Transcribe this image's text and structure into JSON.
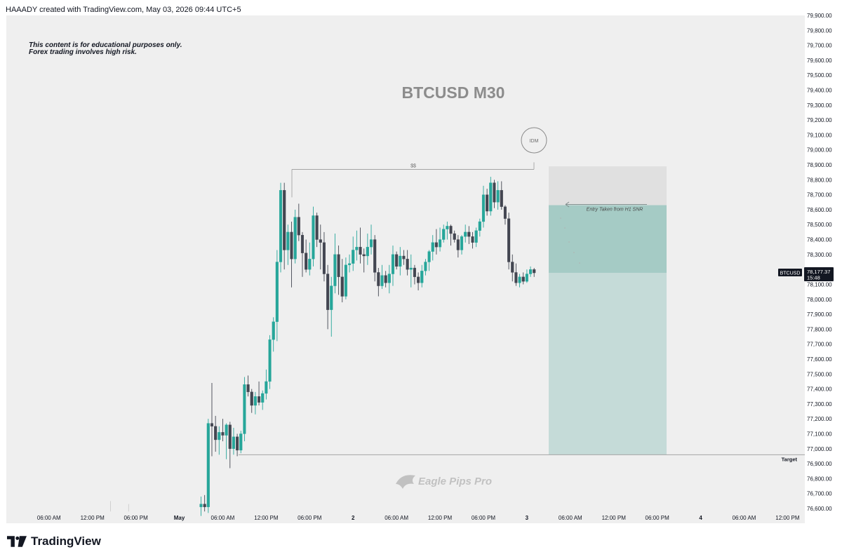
{
  "header": {
    "attribution": "HAAADY created with TradingView.com, May 03, 2026 09:44 UTC+5"
  },
  "footer": {
    "brand": "TradingView"
  },
  "colors": {
    "bullish": "#26a69a",
    "bearish": "#434651",
    "background": "#efefef",
    "tp_zone": "#9bc8c2",
    "sl_zone": "#e0e0e0"
  },
  "chart_data": {
    "type": "candlestick",
    "title": "BTCUSD M30",
    "disclaimer": [
      "This content is for educational purposes only.",
      "Forex trading involves high risk."
    ],
    "watermark": "Eagle Pips Pro",
    "symbol": "BTCUSD",
    "last_price": "78,177.37",
    "countdown": "15:48",
    "ylim": [
      76550,
      79950
    ],
    "y_ticks": [
      76600,
      76700,
      76800,
      76900,
      77000,
      77100,
      77200,
      77300,
      77400,
      77500,
      77600,
      77700,
      77800,
      77900,
      78000,
      78100,
      78200,
      78300,
      78400,
      78500,
      78600,
      78700,
      78800,
      78900,
      79000,
      79100,
      79200,
      79300,
      79400,
      79500,
      79600,
      79700,
      79800,
      79900
    ],
    "x_ticks": [
      {
        "label": "06:00 AM",
        "bar": -42,
        "bold": false
      },
      {
        "label": "12:00 PM",
        "bar": -30,
        "bold": false
      },
      {
        "label": "06:00 PM",
        "bar": -18,
        "bold": false
      },
      {
        "label": "May",
        "bar": -6,
        "bold": true
      },
      {
        "label": "06:00 AM",
        "bar": 6,
        "bold": false
      },
      {
        "label": "12:00 PM",
        "bar": 18,
        "bold": false
      },
      {
        "label": "06:00 PM",
        "bar": 30,
        "bold": false
      },
      {
        "label": "2",
        "bar": 42,
        "bold": true
      },
      {
        "label": "06:00 AM",
        "bar": 54,
        "bold": false
      },
      {
        "label": "12:00 PM",
        "bar": 66,
        "bold": false
      },
      {
        "label": "06:00 PM",
        "bar": 78,
        "bold": false
      },
      {
        "label": "3",
        "bar": 90,
        "bold": true
      },
      {
        "label": "06:00 AM",
        "bar": 102,
        "bold": false
      },
      {
        "label": "12:00 PM",
        "bar": 114,
        "bold": false
      },
      {
        "label": "06:00 PM",
        "bar": 126,
        "bold": false
      },
      {
        "label": "4",
        "bar": 138,
        "bold": true
      },
      {
        "label": "06:00 AM",
        "bar": 150,
        "bold": false
      },
      {
        "label": "12:00 PM",
        "bar": 162,
        "bold": false
      }
    ],
    "candles": [
      [
        76610,
        76680,
        76550,
        76630
      ],
      [
        76630,
        76690,
        76580,
        76610
      ],
      [
        76610,
        77200,
        76570,
        77170
      ],
      [
        77170,
        77440,
        76950,
        77150
      ],
      [
        77150,
        77220,
        76980,
        77060
      ],
      [
        77060,
        77150,
        76960,
        77110
      ],
      [
        77110,
        77200,
        77050,
        77090
      ],
      [
        77090,
        77170,
        76930,
        77160
      ],
      [
        77160,
        77180,
        76870,
        77000
      ],
      [
        77000,
        77140,
        76960,
        77080
      ],
      [
        77080,
        77100,
        76950,
        76990
      ],
      [
        76990,
        77120,
        76970,
        77100
      ],
      [
        77100,
        77480,
        77050,
        77430
      ],
      [
        77430,
        77490,
        77350,
        77380
      ],
      [
        77380,
        77400,
        77240,
        77290
      ],
      [
        77290,
        77380,
        77230,
        77350
      ],
      [
        77350,
        77450,
        77290,
        77310
      ],
      [
        77310,
        77390,
        77260,
        77370
      ],
      [
        77370,
        77530,
        77330,
        77450
      ],
      [
        77450,
        77760,
        77400,
        77730
      ],
      [
        77730,
        77880,
        77650,
        77850
      ],
      [
        77850,
        78330,
        77720,
        78250
      ],
      [
        78250,
        78780,
        78180,
        78730
      ],
      [
        78730,
        78780,
        78200,
        78330
      ],
      [
        78330,
        78500,
        78230,
        78450
      ],
      [
        78450,
        78520,
        78080,
        78270
      ],
      [
        78270,
        78600,
        78240,
        78550
      ],
      [
        78550,
        78640,
        78390,
        78430
      ],
      [
        78430,
        78450,
        78150,
        78310
      ],
      [
        78310,
        78400,
        78180,
        78200
      ],
      [
        78200,
        78380,
        78160,
        78270
      ],
      [
        78270,
        78620,
        78220,
        78560
      ],
      [
        78560,
        78580,
        78350,
        78400
      ],
      [
        78400,
        78500,
        78200,
        78380
      ],
      [
        78380,
        78450,
        78120,
        78170
      ],
      [
        78170,
        78230,
        77800,
        77930
      ],
      [
        77930,
        78150,
        77750,
        78090
      ],
      [
        78090,
        78440,
        78040,
        78300
      ],
      [
        78300,
        78360,
        78030,
        78150
      ],
      [
        78150,
        78270,
        77980,
        78020
      ],
      [
        78020,
        78280,
        78000,
        78230
      ],
      [
        78230,
        78300,
        78180,
        78240
      ],
      [
        78240,
        78420,
        78190,
        78330
      ],
      [
        78330,
        78460,
        78260,
        78350
      ],
      [
        78350,
        78480,
        78240,
        78300
      ],
      [
        78300,
        78340,
        78180,
        78290
      ],
      [
        78290,
        78440,
        78230,
        78350
      ],
      [
        78350,
        78500,
        78300,
        78400
      ],
      [
        78400,
        78430,
        78120,
        78180
      ],
      [
        78180,
        78210,
        78020,
        78090
      ],
      [
        78090,
        78230,
        78070,
        78160
      ],
      [
        78160,
        78190,
        78080,
        78110
      ],
      [
        78110,
        78230,
        78040,
        78170
      ],
      [
        78170,
        78360,
        78090,
        78300
      ],
      [
        78300,
        78320,
        78200,
        78220
      ],
      [
        78220,
        78350,
        78160,
        78290
      ],
      [
        78290,
        78330,
        78230,
        78270
      ],
      [
        78270,
        78330,
        78160,
        78200
      ],
      [
        78200,
        78300,
        78080,
        78210
      ],
      [
        78210,
        78230,
        78100,
        78150
      ],
      [
        78150,
        78180,
        78060,
        78110
      ],
      [
        78110,
        78230,
        78080,
        78190
      ],
      [
        78190,
        78270,
        78160,
        78250
      ],
      [
        78250,
        78330,
        78190,
        78320
      ],
      [
        78320,
        78430,
        78260,
        78380
      ],
      [
        78380,
        78470,
        78300,
        78350
      ],
      [
        78350,
        78480,
        78320,
        78400
      ],
      [
        78400,
        78500,
        78380,
        78470
      ],
      [
        78470,
        78520,
        78400,
        78490
      ],
      [
        78490,
        78500,
        78360,
        78440
      ],
      [
        78440,
        78460,
        78380,
        78400
      ],
      [
        78400,
        78430,
        78280,
        78330
      ],
      [
        78330,
        78430,
        78300,
        78420
      ],
      [
        78420,
        78500,
        78380,
        78450
      ],
      [
        78450,
        78490,
        78370,
        78420
      ],
      [
        78420,
        78450,
        78340,
        78380
      ],
      [
        78380,
        78480,
        78350,
        78460
      ],
      [
        78460,
        78540,
        78420,
        78520
      ],
      [
        78520,
        78760,
        78480,
        78700
      ],
      [
        78700,
        78740,
        78560,
        78590
      ],
      [
        78590,
        78820,
        78560,
        78780
      ],
      [
        78780,
        78800,
        78610,
        78650
      ],
      [
        78650,
        78790,
        78600,
        78730
      ],
      [
        78730,
        78790,
        78600,
        78620
      ],
      [
        78620,
        78630,
        78500,
        78540
      ],
      [
        78540,
        78580,
        78200,
        78250
      ],
      [
        78250,
        78300,
        78120,
        78180
      ],
      [
        78180,
        78240,
        78090,
        78110
      ],
      [
        78110,
        78170,
        78080,
        78150
      ],
      [
        78150,
        78180,
        78100,
        78120
      ],
      [
        78120,
        78200,
        78110,
        78170
      ],
      [
        78170,
        78220,
        78150,
        78200
      ],
      [
        78200,
        78210,
        78150,
        78177
      ]
    ],
    "annotations": [
      {
        "type": "label",
        "text": "IDM"
      },
      {
        "type": "liquidity",
        "text": "$$",
        "price": 78870
      },
      {
        "type": "arrow",
        "text": "Entry Taken from H1 SNR",
        "price": 78630
      },
      {
        "type": "target",
        "text": "Target",
        "price": 76960
      }
    ],
    "position": {
      "type": "short",
      "entry": 78630,
      "stop_loss": 78890,
      "take_profit": 76960,
      "current": 78177.37
    }
  }
}
